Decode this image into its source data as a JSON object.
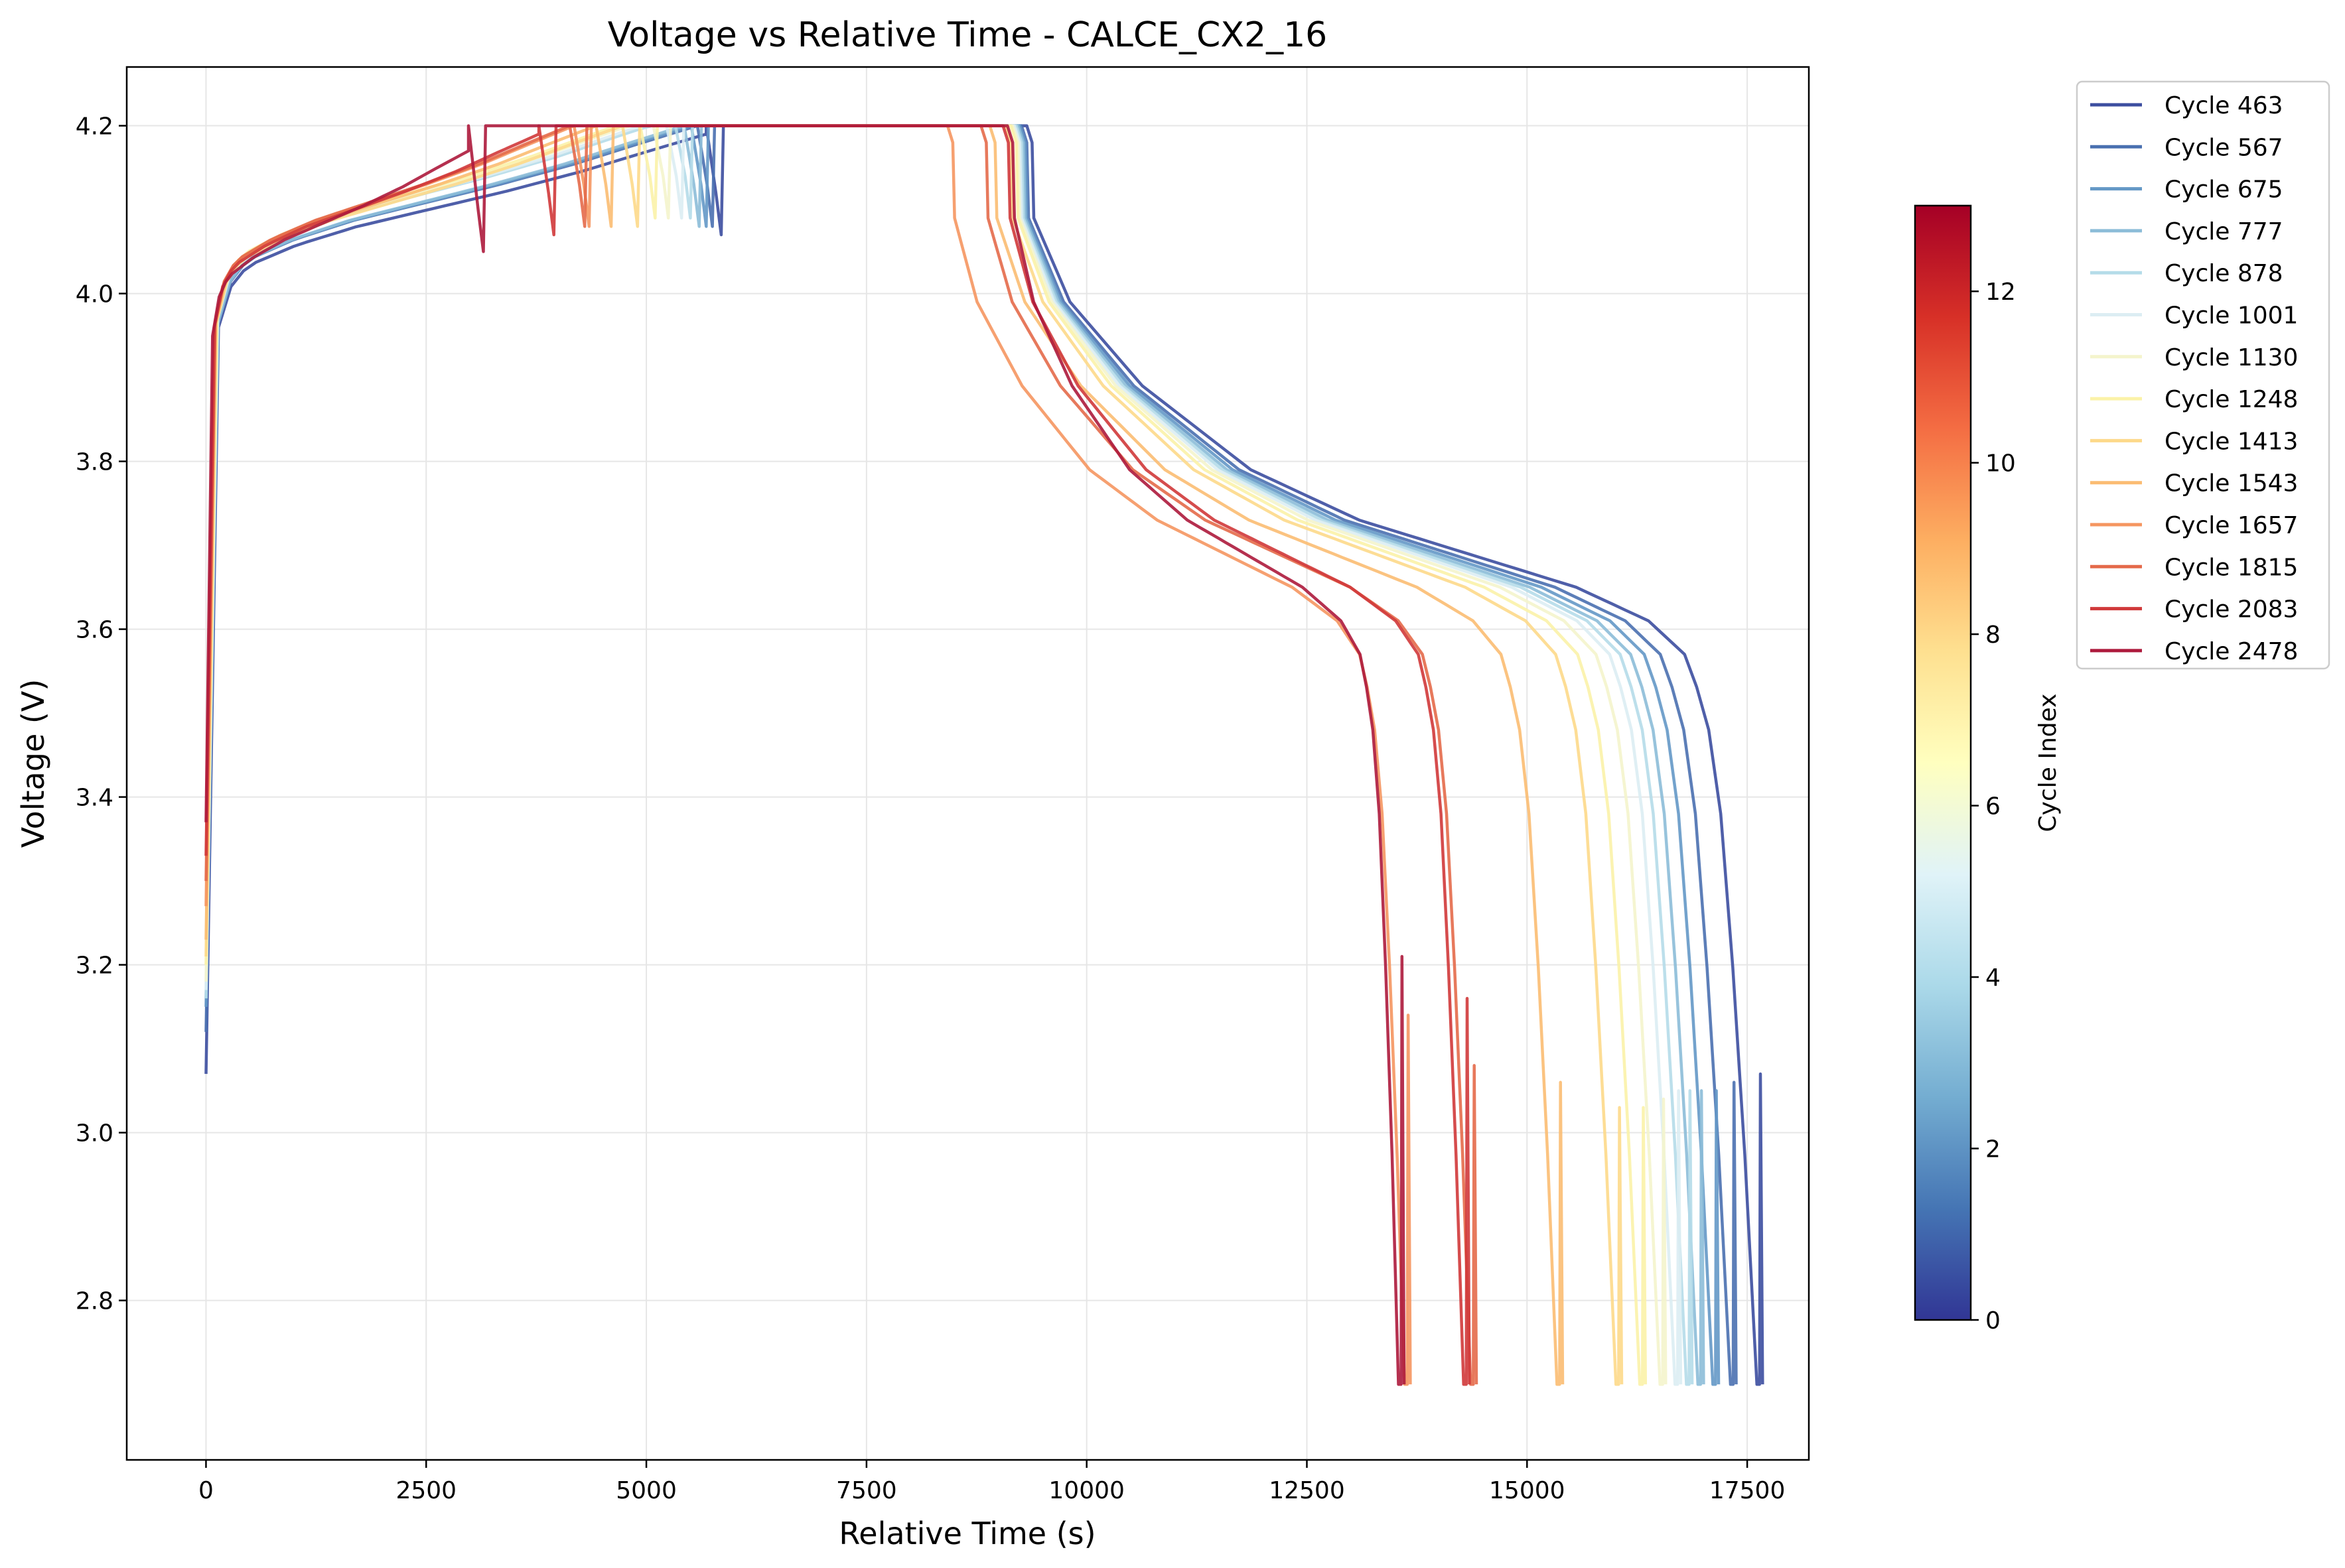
{
  "chart_data": {
    "type": "line",
    "title": "Voltage vs Relative Time - CALCE_CX2_16",
    "xlabel": "Relative Time (s)",
    "ylabel": "Voltage (V)",
    "xlim": [
      -900,
      18200
    ],
    "ylim": [
      2.61,
      4.27
    ],
    "xticks": [
      0,
      2500,
      5000,
      7500,
      10000,
      12500,
      15000,
      17500
    ],
    "yticks": [
      2.8,
      3.0,
      3.2,
      3.4,
      3.6,
      3.8,
      4.0,
      4.2
    ],
    "grid": true,
    "legend_placement": "outside-right",
    "colorbar": {
      "label": "Cycle Index",
      "range": [
        0,
        13
      ],
      "ticks": [
        0,
        2,
        4,
        6,
        8,
        10,
        12
      ],
      "colormap": [
        "#313695",
        "#4575b4",
        "#74add1",
        "#abd9e9",
        "#e0f3f8",
        "#ffffbf",
        "#fee090",
        "#fdae61",
        "#f46d43",
        "#d73027",
        "#a50026"
      ]
    },
    "series": [
      {
        "name": "Cycle 463",
        "color": "#3c4ea0",
        "v0": 3.07,
        "charge_end": 5850,
        "cc_end_v": 4.07,
        "cv_end": 9320,
        "cutoff": 17650,
        "dip": 3.07
      },
      {
        "name": "Cycle 567",
        "color": "#4a70b0",
        "v0": 3.12,
        "charge_end": 5750,
        "cc_end_v": 4.08,
        "cv_end": 9260,
        "cutoff": 17350,
        "dip": 3.06
      },
      {
        "name": "Cycle 675",
        "color": "#6498c6",
        "v0": 3.15,
        "charge_end": 5680,
        "cc_end_v": 4.08,
        "cv_end": 9240,
        "cutoff": 17150,
        "dip": 3.05
      },
      {
        "name": "Cycle 777",
        "color": "#8cbcd8",
        "v0": 3.16,
        "charge_end": 5600,
        "cc_end_v": 4.08,
        "cv_end": 9220,
        "cutoff": 16980,
        "dip": 3.05
      },
      {
        "name": "Cycle 878",
        "color": "#b5dce9",
        "v0": 3.16,
        "charge_end": 5500,
        "cc_end_v": 4.09,
        "cv_end": 9200,
        "cutoff": 16850,
        "dip": 3.05
      },
      {
        "name": "Cycle 1001",
        "color": "#dcedf3",
        "v0": 3.17,
        "charge_end": 5400,
        "cc_end_v": 4.09,
        "cv_end": 9180,
        "cutoff": 16720,
        "dip": 3.05
      },
      {
        "name": "Cycle 1130",
        "color": "#f4f4cc",
        "v0": 3.18,
        "charge_end": 5250,
        "cc_end_v": 4.09,
        "cv_end": 9160,
        "cutoff": 16550,
        "dip": 3.04
      },
      {
        "name": "Cycle 1248",
        "color": "#fbf2a8",
        "v0": 3.2,
        "charge_end": 5100,
        "cc_end_v": 4.09,
        "cv_end": 9140,
        "cutoff": 16320,
        "dip": 3.03
      },
      {
        "name": "Cycle 1413",
        "color": "#fdd98a",
        "v0": 3.21,
        "charge_end": 4900,
        "cc_end_v": 4.08,
        "cv_end": 9080,
        "cutoff": 16050,
        "dip": 3.03
      },
      {
        "name": "Cycle 1543",
        "color": "#fbbc72",
        "v0": 3.23,
        "charge_end": 4600,
        "cc_end_v": 4.08,
        "cv_end": 8900,
        "cutoff": 15380,
        "dip": 3.06
      },
      {
        "name": "Cycle 1657",
        "color": "#f59660",
        "v0": 3.27,
        "charge_end": 4350,
        "cc_end_v": 4.08,
        "cv_end": 8420,
        "cutoff": 13650,
        "dip": 3.14
      },
      {
        "name": "Cycle 1815",
        "color": "#e46a4a",
        "v0": 3.3,
        "charge_end": 4300,
        "cc_end_v": 4.08,
        "cv_end": 8800,
        "cutoff": 14400,
        "dip": 3.08
      },
      {
        "name": "Cycle 2083",
        "color": "#d0393a",
        "v0": 3.33,
        "charge_end": 3950,
        "cc_end_v": 4.07,
        "cv_end": 9050,
        "cutoff": 14320,
        "dip": 3.16
      },
      {
        "name": "Cycle 2478",
        "color": "#ad1a3c",
        "v0": 3.37,
        "charge_end": 3150,
        "cc_end_v": 4.05,
        "cv_end": 9100,
        "cutoff": 13580,
        "dip": 3.21
      }
    ]
  }
}
